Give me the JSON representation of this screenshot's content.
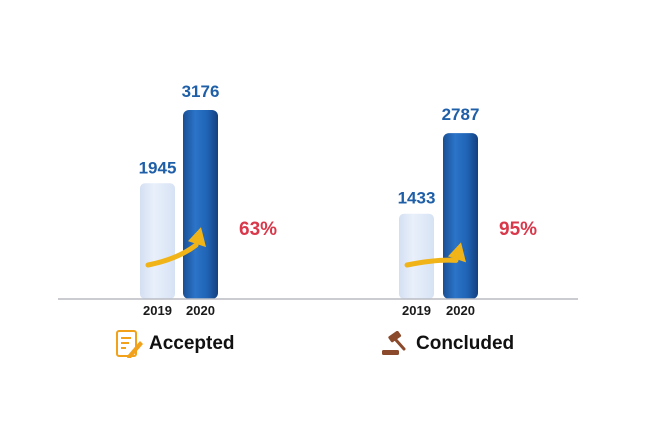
{
  "colors": {
    "bar_2019": "#dbe6f6",
    "bar_2020": "#1f63b4",
    "value_text": "#1f5fa8",
    "percent_text": "#d9384b",
    "arrow": "#f1b418",
    "axis": "#b9bcc4"
  },
  "icons": {
    "accepted": "document-pen-icon",
    "concluded": "gavel-icon"
  },
  "chart_data": {
    "type": "bar",
    "series": [
      {
        "name": "2019",
        "values": [
          1945,
          1433
        ]
      },
      {
        "name": "2020",
        "values": [
          3176,
          2787
        ]
      }
    ],
    "categories": [
      "Accepted",
      "Concluded"
    ],
    "growth": [
      "63%",
      "95%"
    ],
    "ylim": [
      0,
      3176
    ]
  }
}
